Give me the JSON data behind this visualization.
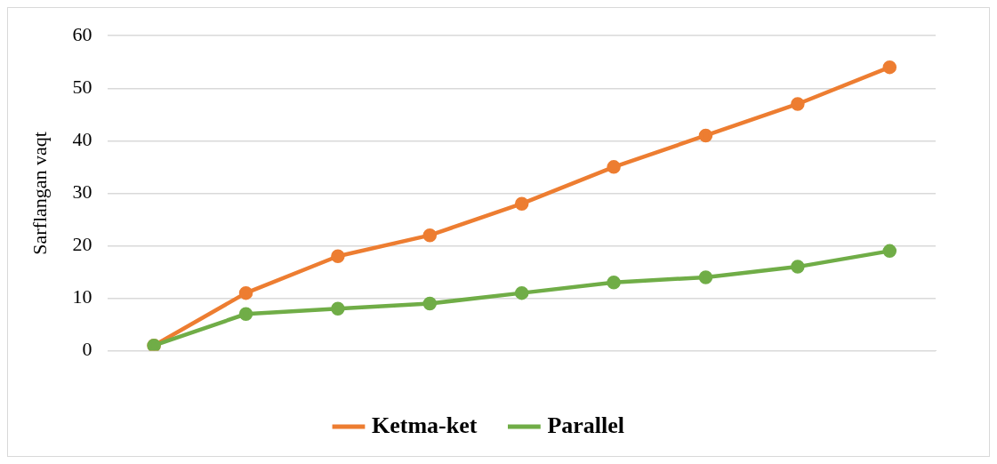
{
  "chart_data": {
    "type": "line",
    "ylabel": "Sarflangan vaqt",
    "categories": [
      null,
      null,
      null,
      null,
      null,
      null,
      null,
      null,
      null
    ],
    "series": [
      {
        "name": "Ketma-ket",
        "color": "#ed7d31",
        "values": [
          1,
          11,
          18,
          22,
          28,
          35,
          41,
          47,
          54
        ]
      },
      {
        "name": "Parallel",
        "color": "#70ad47",
        "values": [
          1,
          7,
          8,
          9,
          11,
          13,
          14,
          16,
          19
        ]
      }
    ],
    "ylim": [
      0,
      60
    ],
    "yticks": [
      0,
      10,
      20,
      30,
      40,
      50,
      60
    ],
    "grid": "y",
    "legend": "bottom",
    "marker": "circle",
    "line_style": "solid"
  }
}
